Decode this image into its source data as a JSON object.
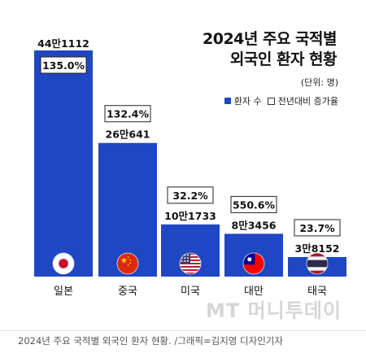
{
  "title_line1": "2024년 주요 국적별",
  "title_line2": "외국인 환자 현황",
  "unit_note": "(단위: 명)",
  "legend": {
    "patients": "환자 수",
    "growth": "전년대비 증가율"
  },
  "watermark": "MT 머니투데이",
  "caption": "2024년 주요 국적별 외국인 환자 현황. /그래픽=김지영 디자인기자",
  "colors": {
    "bar": "#1f47c4",
    "label_box_border": "#222222"
  },
  "chart_data": {
    "type": "bar",
    "categories": [
      "일본",
      "중국",
      "미국",
      "대만",
      "태국"
    ],
    "values": [
      441112,
      260641,
      101733,
      83456,
      38152
    ],
    "value_labels": [
      "44만1112",
      "26만641",
      "10만1733",
      "8만3456",
      "3만8152"
    ],
    "growth_labels": [
      "135.0%",
      "132.4%",
      "32.2%",
      "550.6%",
      "23.7%"
    ],
    "flag_icons": [
      "japan-flag-icon",
      "china-flag-icon",
      "usa-flag-icon",
      "taiwan-flag-icon",
      "thailand-flag-icon"
    ],
    "legend": [
      "환자 수",
      "전년대비 증가율"
    ]
  }
}
